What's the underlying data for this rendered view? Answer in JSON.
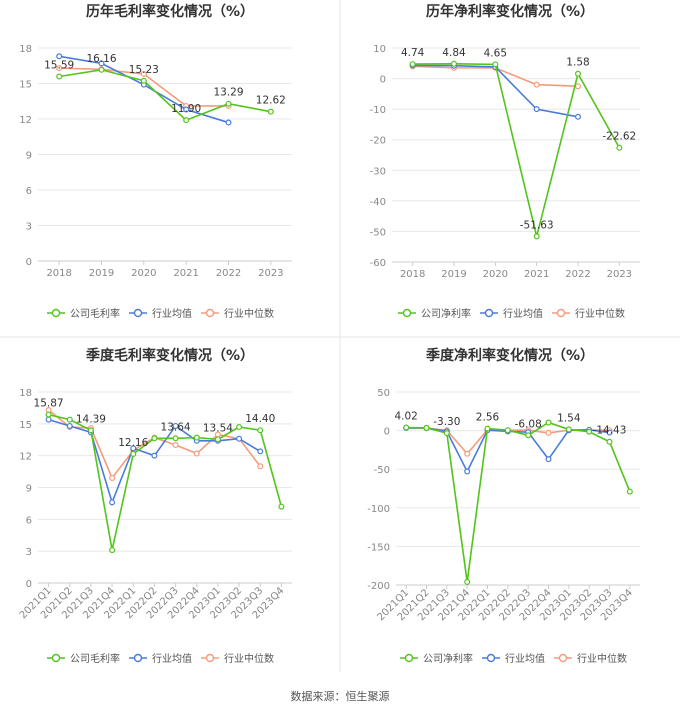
{
  "source_label": "数据来源：恒生聚源",
  "colors": {
    "company": "#52c41a",
    "industry_avg": "#4a7bdc",
    "industry_median": "#f59b7c",
    "grid": "#e8e8e8",
    "axis_text": "#888888",
    "title_text": "#333333",
    "label_text": "#333333"
  },
  "chart_data": [
    {
      "type": "line",
      "title": "历年毛利率变化情况（%）",
      "categories": [
        "2018",
        "2019",
        "2020",
        "2021",
        "2022",
        "2023"
      ],
      "ylim": [
        0,
        18
      ],
      "yticks": [
        0,
        3,
        6,
        9,
        12,
        15,
        18
      ],
      "series": [
        {
          "name": "公司毛利率",
          "key": "company",
          "values": [
            15.59,
            16.16,
            15.23,
            11.9,
            13.29,
            12.62
          ]
        },
        {
          "name": "行业均值",
          "key": "industry_avg",
          "values": [
            17.3,
            16.7,
            14.9,
            12.8,
            11.7,
            null
          ]
        },
        {
          "name": "行业中位数",
          "key": "industry_median",
          "values": [
            16.3,
            16.2,
            15.8,
            13.1,
            13.1,
            null
          ]
        }
      ],
      "data_labels": [
        {
          "x": 0,
          "text": "15.59"
        },
        {
          "x": 1,
          "text": "16.16"
        },
        {
          "x": 2,
          "text": "15.23"
        },
        {
          "x": 3,
          "text": "11.90"
        },
        {
          "x": 4,
          "text": "13.29"
        },
        {
          "x": 5,
          "text": "12.62"
        }
      ],
      "grid": true,
      "legend_position": "bottom-center"
    },
    {
      "type": "line",
      "title": "历年净利率变化情况（%）",
      "categories": [
        "2018",
        "2019",
        "2020",
        "2021",
        "2022",
        "2023"
      ],
      "ylim": [
        -60,
        10
      ],
      "yticks": [
        -60,
        -50,
        -40,
        -30,
        -20,
        -10,
        0,
        10
      ],
      "series": [
        {
          "name": "公司净利率",
          "key": "company",
          "values": [
            4.74,
            4.84,
            4.65,
            -51.63,
            1.58,
            -22.62
          ]
        },
        {
          "name": "行业均值",
          "key": "industry_avg",
          "values": [
            4.3,
            4.2,
            3.8,
            -10.0,
            -12.5,
            null
          ]
        },
        {
          "name": "行业中位数",
          "key": "industry_median",
          "values": [
            4.0,
            3.5,
            3.5,
            -2.0,
            -2.5,
            null
          ]
        }
      ],
      "data_labels": [
        {
          "x": 0,
          "text": "4.74"
        },
        {
          "x": 1,
          "text": "4.84"
        },
        {
          "x": 2,
          "text": "4.65"
        },
        {
          "x": 3,
          "text": "-51.63"
        },
        {
          "x": 4,
          "text": "1.58"
        },
        {
          "x": 5,
          "text": "-22.62"
        }
      ],
      "grid": true,
      "legend_position": "bottom-center"
    },
    {
      "type": "line",
      "title": "季度毛利率变化情况（%）",
      "categories": [
        "2021Q1",
        "2021Q2",
        "2021Q3",
        "2021Q4",
        "2022Q1",
        "2022Q2",
        "2022Q3",
        "2022Q4",
        "2023Q1",
        "2023Q2",
        "2023Q3",
        "2023Q4"
      ],
      "ylim": [
        0,
        18
      ],
      "yticks": [
        0,
        3,
        6,
        9,
        12,
        15,
        18
      ],
      "series": [
        {
          "name": "公司毛利率",
          "key": "company",
          "values": [
            15.87,
            15.4,
            14.39,
            3.1,
            12.16,
            13.64,
            13.64,
            13.7,
            13.54,
            14.7,
            14.4,
            7.2
          ]
        },
        {
          "name": "行业均值",
          "key": "industry_avg",
          "values": [
            15.4,
            14.8,
            14.2,
            7.6,
            12.7,
            12.0,
            14.8,
            13.4,
            13.4,
            13.6,
            12.4,
            null
          ]
        },
        {
          "name": "行业中位数",
          "key": "industry_median",
          "values": [
            16.3,
            14.7,
            14.6,
            9.9,
            12.5,
            13.7,
            13.0,
            12.2,
            14.0,
            13.6,
            11.0,
            null
          ]
        }
      ],
      "data_labels": [
        {
          "x": 0,
          "text": "15.87"
        },
        {
          "x": 2,
          "text": "14.39"
        },
        {
          "x": 4,
          "text": "12.16"
        },
        {
          "x": 6,
          "text": "13.64"
        },
        {
          "x": 8,
          "text": "13.54"
        },
        {
          "x": 10,
          "text": "14.40"
        }
      ],
      "grid": true,
      "legend_position": "bottom-center"
    },
    {
      "type": "line",
      "title": "季度净利率变化情况（%）",
      "categories": [
        "2021Q1",
        "2021Q2",
        "2021Q3",
        "2021Q4",
        "2022Q1",
        "2022Q2",
        "2022Q3",
        "2022Q4",
        "2023Q1",
        "2023Q2",
        "2023Q3",
        "2023Q4"
      ],
      "ylim": [
        -200,
        50
      ],
      "yticks": [
        -200,
        -150,
        -100,
        -50,
        0,
        50
      ],
      "series": [
        {
          "name": "公司净利率",
          "key": "company",
          "values": [
            4.02,
            3.5,
            -3.3,
            -196,
            2.56,
            0.5,
            -6.08,
            10.5,
            1.54,
            -1.5,
            -14.43,
            -79
          ]
        },
        {
          "name": "行业均值",
          "key": "industry_avg",
          "values": [
            3.5,
            3.5,
            -1.0,
            -53,
            0.5,
            -1.0,
            -2.0,
            -37,
            0.5,
            1.0,
            -2.5,
            null
          ]
        },
        {
          "name": "行业中位数",
          "key": "industry_median",
          "values": [
            3.5,
            3.0,
            0.5,
            -30,
            1.0,
            0.5,
            0.5,
            -3.0,
            0.5,
            0.5,
            0.5,
            null
          ]
        }
      ],
      "data_labels": [
        {
          "x": 0,
          "text": "4.02"
        },
        {
          "x": 2,
          "text": "-3.30"
        },
        {
          "x": 4,
          "text": "2.56"
        },
        {
          "x": 6,
          "text": "-6.08"
        },
        {
          "x": 8,
          "text": "1.54"
        },
        {
          "x": 10,
          "text": "-14.43"
        }
      ],
      "grid": true,
      "legend_position": "bottom-center"
    }
  ]
}
